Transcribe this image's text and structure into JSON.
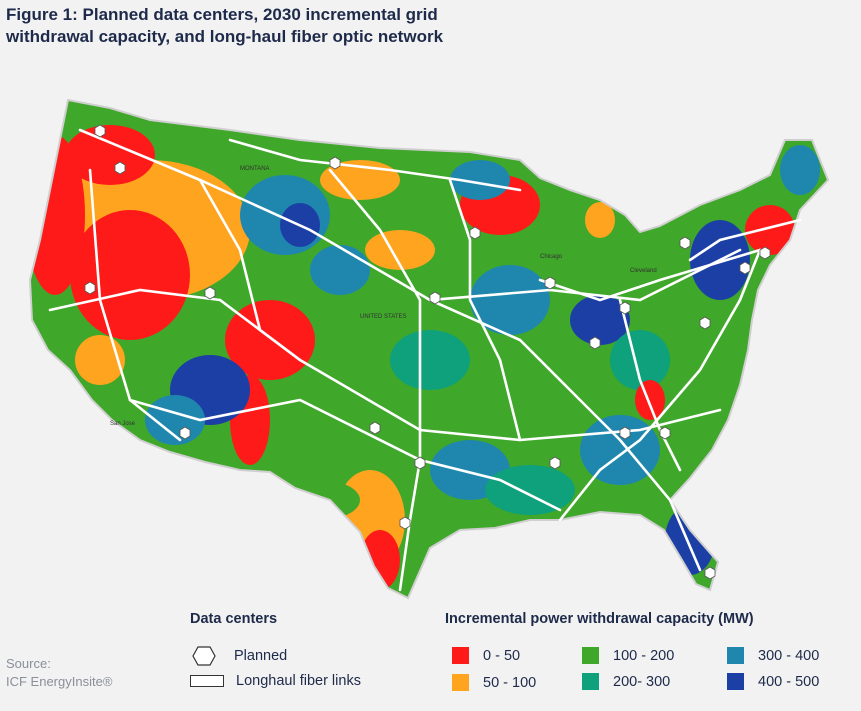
{
  "title_line1": "Figure 1: Planned data centers, 2030 incremental grid",
  "title_line2": "withdrawal capacity, and long-haul fiber optic network",
  "map_labels": {
    "united_states": "UNITED STATES",
    "montana": "MONTANA",
    "chicago": "Chicago",
    "cleveland": "Cleveland",
    "san_jose": "San Jose"
  },
  "legend": {
    "data_centers_title": "Data centers",
    "planned": "Planned",
    "fiber": "Longhaul fiber links",
    "capacity_title": "Incremental power withdrawal capacity (MW)",
    "bins": [
      {
        "label": "0 - 50",
        "color": "#ff1a1a"
      },
      {
        "label": "50 - 100",
        "color": "#ffa41f"
      },
      {
        "label": "100 - 200",
        "color": "#3fa72a"
      },
      {
        "label": "200- 300",
        "color": "#0fa17c"
      },
      {
        "label": "300 - 400",
        "color": "#1f87ae"
      },
      {
        "label": "400 - 500",
        "color": "#1c3fa6"
      }
    ]
  },
  "source_label": "Source:",
  "source_name": "ICF EnergyInsite®"
}
